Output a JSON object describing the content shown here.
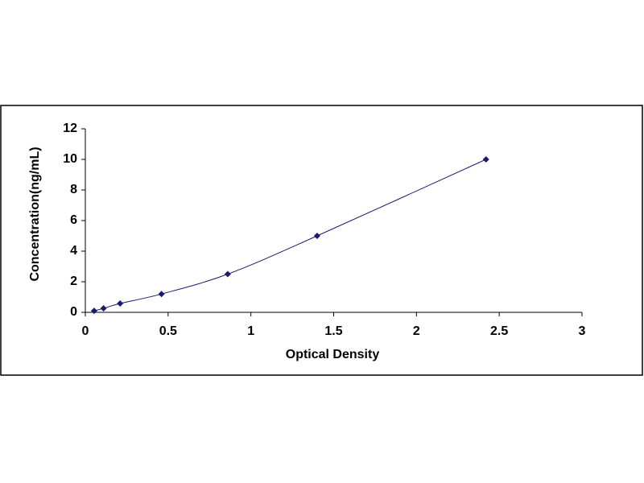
{
  "chart_data": {
    "type": "line",
    "x_label": "Optical Density",
    "y_label": "Concentration(ng/mL)",
    "x": [
      0.053,
      0.11,
      0.21,
      0.46,
      0.86,
      1.4,
      2.42
    ],
    "series": [
      {
        "color": "#1a1a6e",
        "values": [
          0.1,
          0.26,
          0.58,
          1.2,
          2.5,
          5,
          10
        ]
      }
    ],
    "xlim": [
      0,
      3
    ],
    "xticks": [
      0,
      0.5,
      1,
      1.5,
      2,
      2.5,
      3
    ],
    "ylim": [
      0,
      12
    ],
    "yticks": [
      0,
      2,
      4,
      6,
      8,
      10,
      12
    ],
    "grid": false,
    "smooth": true,
    "marker": "diamond"
  }
}
